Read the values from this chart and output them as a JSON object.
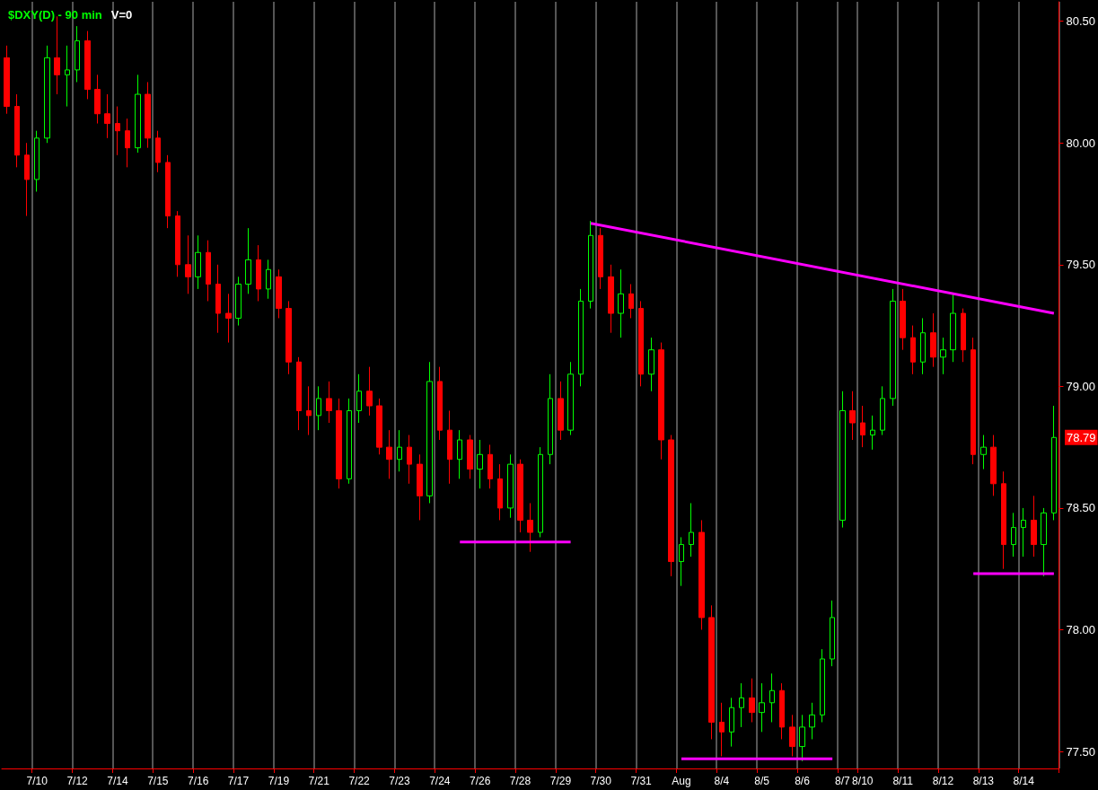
{
  "chart_data": {
    "type": "candlestick",
    "title": "$DXY(D) - 90 min",
    "subtitle": "V=0",
    "categories": [
      null,
      null,
      null,
      "7/10",
      null,
      null,
      null,
      "7/12",
      null,
      null,
      null,
      "7/14",
      null,
      null,
      null,
      "7/15",
      null,
      null,
      null,
      "7/16",
      null,
      null,
      null,
      "7/17",
      null,
      null,
      null,
      "7/19",
      null,
      null,
      null,
      "7/21",
      null,
      null,
      null,
      "7/22",
      null,
      null,
      null,
      "7/23",
      null,
      null,
      null,
      "7/24",
      null,
      null,
      null,
      "7/26",
      null,
      null,
      null,
      "7/28",
      null,
      null,
      null,
      "7/29",
      null,
      null,
      null,
      "7/30",
      null,
      null,
      null,
      "7/31",
      null,
      null,
      null,
      "Aug",
      null,
      null,
      null,
      "8/4",
      null,
      null,
      null,
      "8/5",
      null,
      null,
      null,
      "8/6",
      null,
      null,
      null,
      "8/7",
      null,
      "8/10",
      null,
      null,
      null,
      "8/11",
      null,
      null,
      null,
      "8/12",
      null,
      null,
      null,
      "8/13",
      null,
      null,
      null,
      "8/14",
      null,
      null,
      null
    ],
    "series": [
      {
        "colors": [
          "#ff0000",
          "#ff0000",
          "#ff0000",
          "#00ff00",
          "#00ff00",
          "#ff0000",
          "#00ff00",
          "#00ff00",
          "#ff0000",
          "#ff0000",
          "#ff0000",
          "#ff0000",
          "#ff0000",
          "#00ff00",
          "#ff0000",
          "#ff0000",
          "#ff0000",
          "#ff0000",
          "#ff0000",
          "#00ff00",
          "#ff0000",
          "#ff0000",
          "#ff0000",
          "#00ff00",
          "#00ff00",
          "#ff0000",
          "#00ff00",
          "#ff0000",
          "#ff0000",
          "#ff0000",
          "#ff0000",
          "#00ff00",
          "#ff0000",
          "#ff0000",
          "#00ff00",
          "#00ff00",
          "#ff0000",
          "#ff0000",
          "#ff0000",
          "#00ff00",
          "#ff0000",
          "#ff0000",
          "#00ff00",
          "#ff0000",
          "#ff0000",
          "#00ff00",
          "#ff0000",
          "#00ff00",
          "#ff0000",
          "#ff0000",
          "#00ff00",
          "#ff0000",
          "#ff0000",
          "#00ff00",
          "#00ff00",
          "#ff0000",
          "#00ff00",
          "#00ff00",
          "#00ff00",
          "#ff0000",
          "#ff0000",
          "#00ff00",
          "#ff0000",
          "#ff0000",
          "#00ff00",
          "#ff0000",
          "#ff0000",
          "#00ff00",
          "#00ff00",
          "#ff0000",
          "#ff0000",
          "#ff0000",
          "#00ff00",
          "#00ff00",
          "#ff0000",
          "#00ff00",
          "#00ff00",
          "#ff0000",
          "#ff0000",
          "#00ff00",
          "#00ff00",
          "#00ff00",
          "#00ff00",
          "#00ff00",
          "#ff0000",
          "#ff0000",
          "#00ff00",
          "#00ff00",
          "#00ff00",
          "#ff0000",
          "#ff0000",
          "#00ff00",
          "#ff0000",
          "#00ff00",
          "#00ff00",
          "#ff0000",
          "#ff0000",
          "#00ff00",
          "#ff0000",
          "#ff0000",
          "#00ff00",
          "#00ff00",
          "#ff0000",
          "#00ff00",
          "#00ff00"
        ],
        "ohlc": [
          [
            80.35,
            80.4,
            80.12,
            80.15
          ],
          [
            80.15,
            80.2,
            79.9,
            79.95
          ],
          [
            79.95,
            80.0,
            79.7,
            79.85
          ],
          [
            79.85,
            80.05,
            79.8,
            80.02
          ],
          [
            80.02,
            80.4,
            80.0,
            80.35
          ],
          [
            80.35,
            80.52,
            80.2,
            80.28
          ],
          [
            80.28,
            80.4,
            80.15,
            80.3
          ],
          [
            80.3,
            80.48,
            80.25,
            80.42
          ],
          [
            80.42,
            80.46,
            80.18,
            80.22
          ],
          [
            80.22,
            80.28,
            80.08,
            80.12
          ],
          [
            80.12,
            80.2,
            80.02,
            80.08
          ],
          [
            80.08,
            80.15,
            79.95,
            80.05
          ],
          [
            80.05,
            80.1,
            79.9,
            79.98
          ],
          [
            79.98,
            80.28,
            79.96,
            80.2
          ],
          [
            80.2,
            80.25,
            79.98,
            80.02
          ],
          [
            80.02,
            80.05,
            79.88,
            79.92
          ],
          [
            79.92,
            79.95,
            79.65,
            79.7
          ],
          [
            79.7,
            79.72,
            79.45,
            79.5
          ],
          [
            79.5,
            79.62,
            79.38,
            79.45
          ],
          [
            79.45,
            79.62,
            79.4,
            79.55
          ],
          [
            79.55,
            79.6,
            79.35,
            79.42
          ],
          [
            79.42,
            79.5,
            79.22,
            79.3
          ],
          [
            79.3,
            79.38,
            79.18,
            79.28
          ],
          [
            79.28,
            79.45,
            79.25,
            79.42
          ],
          [
            79.42,
            79.65,
            79.38,
            79.52
          ],
          [
            79.52,
            79.58,
            79.35,
            79.4
          ],
          [
            79.4,
            79.52,
            79.36,
            79.48
          ],
          [
            79.45,
            79.48,
            79.28,
            79.32
          ],
          [
            79.32,
            79.35,
            79.05,
            79.1
          ],
          [
            79.1,
            79.12,
            78.82,
            78.9
          ],
          [
            78.9,
            79.0,
            78.8,
            78.88
          ],
          [
            78.88,
            79.0,
            78.82,
            78.95
          ],
          [
            78.95,
            79.02,
            78.85,
            78.9
          ],
          [
            78.9,
            78.95,
            78.58,
            78.62
          ],
          [
            78.62,
            78.95,
            78.6,
            78.9
          ],
          [
            78.9,
            79.05,
            78.85,
            78.98
          ],
          [
            78.98,
            79.08,
            78.88,
            78.92
          ],
          [
            78.92,
            78.95,
            78.72,
            78.75
          ],
          [
            78.75,
            78.82,
            78.62,
            78.7
          ],
          [
            78.7,
            78.82,
            78.65,
            78.75
          ],
          [
            78.75,
            78.8,
            78.6,
            78.68
          ],
          [
            78.68,
            78.72,
            78.45,
            78.55
          ],
          [
            78.55,
            79.1,
            78.52,
            79.02
          ],
          [
            79.02,
            79.08,
            78.78,
            78.82
          ],
          [
            78.82,
            78.9,
            78.6,
            78.7
          ],
          [
            78.7,
            78.82,
            78.62,
            78.78
          ],
          [
            78.78,
            78.8,
            78.62,
            78.66
          ],
          [
            78.66,
            78.78,
            78.58,
            78.72
          ],
          [
            78.72,
            78.76,
            78.58,
            78.62
          ],
          [
            78.62,
            78.68,
            78.45,
            78.5
          ],
          [
            78.5,
            78.72,
            78.46,
            78.68
          ],
          [
            78.68,
            78.7,
            78.4,
            78.45
          ],
          [
            78.45,
            78.52,
            78.32,
            78.4
          ],
          [
            78.4,
            78.75,
            78.38,
            78.72
          ],
          [
            78.72,
            79.05,
            78.68,
            78.95
          ],
          [
            78.95,
            79.02,
            78.78,
            78.82
          ],
          [
            78.82,
            79.1,
            78.8,
            79.05
          ],
          [
            79.05,
            79.4,
            79.0,
            79.35
          ],
          [
            79.35,
            79.68,
            79.32,
            79.62
          ],
          [
            79.62,
            79.65,
            79.4,
            79.45
          ],
          [
            79.45,
            79.5,
            79.22,
            79.3
          ],
          [
            79.3,
            79.48,
            79.2,
            79.38
          ],
          [
            79.38,
            79.42,
            79.28,
            79.32
          ],
          [
            79.32,
            79.35,
            79.0,
            79.05
          ],
          [
            79.05,
            79.2,
            78.98,
            79.15
          ],
          [
            79.15,
            79.18,
            78.7,
            78.78
          ],
          [
            78.78,
            78.8,
            78.22,
            78.28
          ],
          [
            78.28,
            78.38,
            78.18,
            78.35
          ],
          [
            78.35,
            78.52,
            78.3,
            78.4
          ],
          [
            78.4,
            78.45,
            78.0,
            78.05
          ],
          [
            78.05,
            78.1,
            77.55,
            77.62
          ],
          [
            77.62,
            77.7,
            77.48,
            77.58
          ],
          [
            77.58,
            77.72,
            77.52,
            77.68
          ],
          [
            77.68,
            77.78,
            77.6,
            77.72
          ],
          [
            77.72,
            77.8,
            77.62,
            77.66
          ],
          [
            77.66,
            77.78,
            77.58,
            77.7
          ],
          [
            77.7,
            77.82,
            77.62,
            77.75
          ],
          [
            77.75,
            77.78,
            77.55,
            77.6
          ],
          [
            77.6,
            77.65,
            77.48,
            77.52
          ],
          [
            77.52,
            77.65,
            77.46,
            77.6
          ],
          [
            77.6,
            77.7,
            77.55,
            77.65
          ],
          [
            77.65,
            77.92,
            77.62,
            77.88
          ],
          [
            77.88,
            78.12,
            77.85,
            78.05
          ],
          [
            78.45,
            78.98,
            78.42,
            78.9
          ],
          [
            78.9,
            78.98,
            78.78,
            78.85
          ],
          [
            78.85,
            78.92,
            78.75,
            78.8
          ],
          [
            78.8,
            78.88,
            78.74,
            78.82
          ],
          [
            78.82,
            79.0,
            78.8,
            78.95
          ],
          [
            78.95,
            79.4,
            78.92,
            79.35
          ],
          [
            79.35,
            79.4,
            79.15,
            79.2
          ],
          [
            79.2,
            79.25,
            79.05,
            79.1
          ],
          [
            79.1,
            79.28,
            79.05,
            79.22
          ],
          [
            79.22,
            79.3,
            79.08,
            79.12
          ],
          [
            79.12,
            79.2,
            79.05,
            79.15
          ],
          [
            79.15,
            79.38,
            79.1,
            79.3
          ],
          [
            79.3,
            79.32,
            79.1,
            79.15
          ],
          [
            79.15,
            79.2,
            78.68,
            78.72
          ],
          [
            78.72,
            78.8,
            78.66,
            78.75
          ],
          [
            78.75,
            78.8,
            78.55,
            78.6
          ],
          [
            78.6,
            78.65,
            78.25,
            78.35
          ],
          [
            78.35,
            78.48,
            78.3,
            78.42
          ],
          [
            78.42,
            78.5,
            78.3,
            78.45
          ],
          [
            78.45,
            78.55,
            78.3,
            78.35
          ],
          [
            78.35,
            78.5,
            78.22,
            78.48
          ],
          [
            78.48,
            78.92,
            78.45,
            78.79
          ]
        ]
      },
      {
        "type": "line",
        "color": "#ff00ff",
        "values": [
          null,
          null,
          null,
          null,
          null,
          null,
          null,
          null,
          null,
          null,
          null,
          null,
          null,
          null,
          null,
          null,
          null,
          null,
          null,
          null,
          null,
          null,
          null,
          null,
          null,
          null,
          null,
          null,
          null,
          null,
          null,
          null,
          null,
          null,
          null,
          null,
          null,
          null,
          null,
          null,
          null,
          null,
          null,
          null,
          null,
          null,
          null,
          null,
          null,
          null,
          null,
          null,
          null,
          null,
          null,
          null,
          null,
          null,
          79.67,
          null,
          null,
          null,
          null,
          null,
          null,
          null,
          null,
          null,
          null,
          null,
          null,
          null,
          null,
          null,
          null,
          null,
          null,
          null,
          null,
          null,
          null,
          null,
          null,
          null,
          null,
          null,
          null,
          null,
          null,
          null,
          null,
          null,
          null,
          null,
          null,
          null,
          null,
          null,
          null,
          null,
          null,
          null,
          null,
          null,
          79.3
        ]
      },
      {
        "type": "line",
        "color": "#ff00ff",
        "values": [
          null,
          null,
          null,
          null,
          null,
          null,
          null,
          null,
          null,
          null,
          null,
          null,
          null,
          null,
          null,
          null,
          null,
          null,
          null,
          null,
          null,
          null,
          null,
          null,
          null,
          null,
          null,
          null,
          null,
          null,
          null,
          null,
          null,
          null,
          null,
          null,
          null,
          null,
          null,
          null,
          null,
          null,
          null,
          null,
          null,
          78.36,
          null,
          null,
          null,
          null,
          null,
          null,
          null,
          null,
          null,
          null,
          78.36,
          null,
          null,
          null,
          null,
          null,
          null,
          null,
          null,
          null,
          null,
          null,
          null,
          null,
          null,
          null,
          null,
          null,
          null,
          null,
          null,
          null,
          null,
          null,
          null,
          null,
          null,
          null,
          null,
          null,
          null,
          null,
          null,
          null,
          null,
          null,
          null,
          null,
          null,
          null,
          null,
          null,
          null,
          null,
          null,
          null,
          null,
          null,
          null
        ]
      },
      {
        "type": "line",
        "color": "#ff00ff",
        "values": [
          null,
          null,
          null,
          null,
          null,
          null,
          null,
          null,
          null,
          null,
          null,
          null,
          null,
          null,
          null,
          null,
          null,
          null,
          null,
          null,
          null,
          null,
          null,
          null,
          null,
          null,
          null,
          null,
          null,
          null,
          null,
          null,
          null,
          null,
          null,
          null,
          null,
          null,
          null,
          null,
          null,
          null,
          null,
          null,
          null,
          null,
          null,
          null,
          null,
          null,
          null,
          null,
          null,
          null,
          null,
          null,
          null,
          null,
          null,
          null,
          null,
          null,
          null,
          null,
          null,
          null,
          null,
          77.47,
          null,
          null,
          null,
          null,
          null,
          null,
          null,
          null,
          null,
          null,
          null,
          null,
          null,
          null,
          77.47,
          null,
          null,
          null,
          null,
          null,
          null,
          null,
          null,
          null,
          null,
          null,
          null,
          null,
          null,
          null,
          null,
          null,
          null,
          null,
          null,
          null,
          null
        ]
      },
      {
        "type": "line",
        "color": "#ff00ff",
        "values": [
          null,
          null,
          null,
          null,
          null,
          null,
          null,
          null,
          null,
          null,
          null,
          null,
          null,
          null,
          null,
          null,
          null,
          null,
          null,
          null,
          null,
          null,
          null,
          null,
          null,
          null,
          null,
          null,
          null,
          null,
          null,
          null,
          null,
          null,
          null,
          null,
          null,
          null,
          null,
          null,
          null,
          null,
          null,
          null,
          null,
          null,
          null,
          null,
          null,
          null,
          null,
          null,
          null,
          null,
          null,
          null,
          null,
          null,
          null,
          null,
          null,
          null,
          null,
          null,
          null,
          null,
          null,
          null,
          null,
          null,
          null,
          null,
          null,
          null,
          null,
          null,
          null,
          null,
          null,
          null,
          null,
          null,
          null,
          null,
          null,
          null,
          null,
          null,
          null,
          null,
          null,
          null,
          null,
          null,
          null,
          null,
          78.23,
          null,
          null,
          null,
          null,
          null,
          null,
          null,
          78.23
        ]
      }
    ],
    "ylim": [
      77.43,
      80.58
    ],
    "yticks": [
      {
        "value": 77.5,
        "label": "77.50"
      },
      {
        "value": 78,
        "label": "78.00"
      },
      {
        "value": 78.5,
        "label": "78.50"
      },
      {
        "value": 79,
        "label": "79.00"
      },
      {
        "value": 79.5,
        "label": "79.50"
      },
      {
        "value": 80,
        "label": "80.00"
      },
      {
        "value": 80.5,
        "label": "80.50"
      }
    ],
    "grid": "x",
    "annotations": [
      "78.79"
    ]
  }
}
